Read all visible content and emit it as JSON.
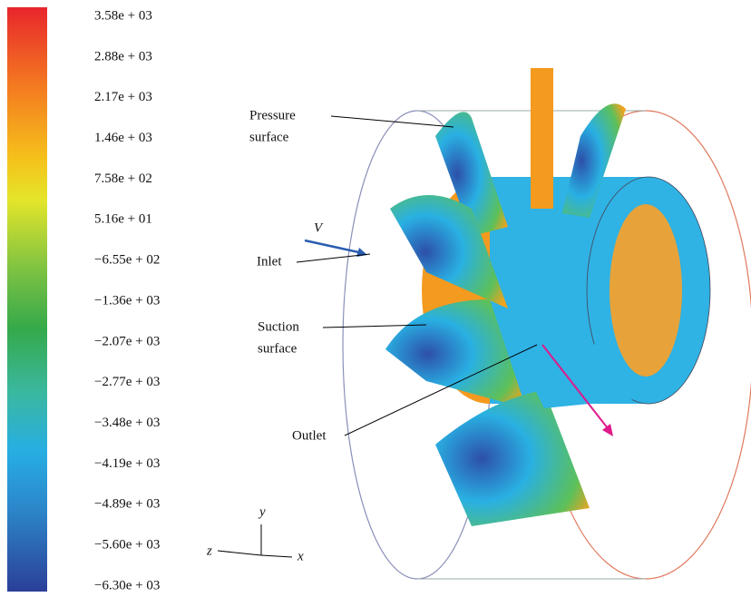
{
  "colorbar": {
    "labels": [
      "3.58e + 03",
      "2.88e + 03",
      "2.17e + 03",
      "1.46e + 03",
      "7.58e + 02",
      "5.16e + 01",
      "−6.55e + 02",
      "−1.36e + 03",
      "−2.07e + 03",
      "−2.77e + 03",
      "−3.48e + 03",
      "−4.19e + 03",
      "−4.89e + 03",
      "−5.60e + 03",
      "−6.30e + 03"
    ]
  },
  "annotations": {
    "pressure": [
      "Pressure",
      "surface"
    ],
    "velocity": "V",
    "inlet": "Inlet",
    "suction": [
      "Suction",
      "surface"
    ],
    "outlet": "Outlet"
  },
  "axes": {
    "y": "y",
    "z": "z",
    "x": "x"
  }
}
